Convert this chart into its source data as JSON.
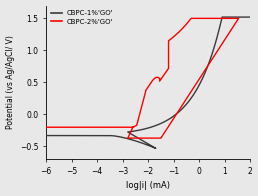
{
  "xlabel": "log|i| (mA)",
  "ylabel": "Potential (vs Ag/AgCl/ V)",
  "xlim": [
    -6,
    2
  ],
  "ylim": [
    -0.7,
    1.7
  ],
  "xticks": [
    -6,
    -5,
    -4,
    -3,
    -2,
    -1,
    0,
    1,
    2
  ],
  "yticks": [
    -0.5,
    0.0,
    0.5,
    1.0,
    1.5
  ],
  "legend": [
    "CBPC-1%'GO'",
    "CBPC-2%'GO'"
  ],
  "colors": [
    "#3a3a3a",
    "#ff0000"
  ],
  "background": "#e8e8e8",
  "linewidth": 1.0
}
